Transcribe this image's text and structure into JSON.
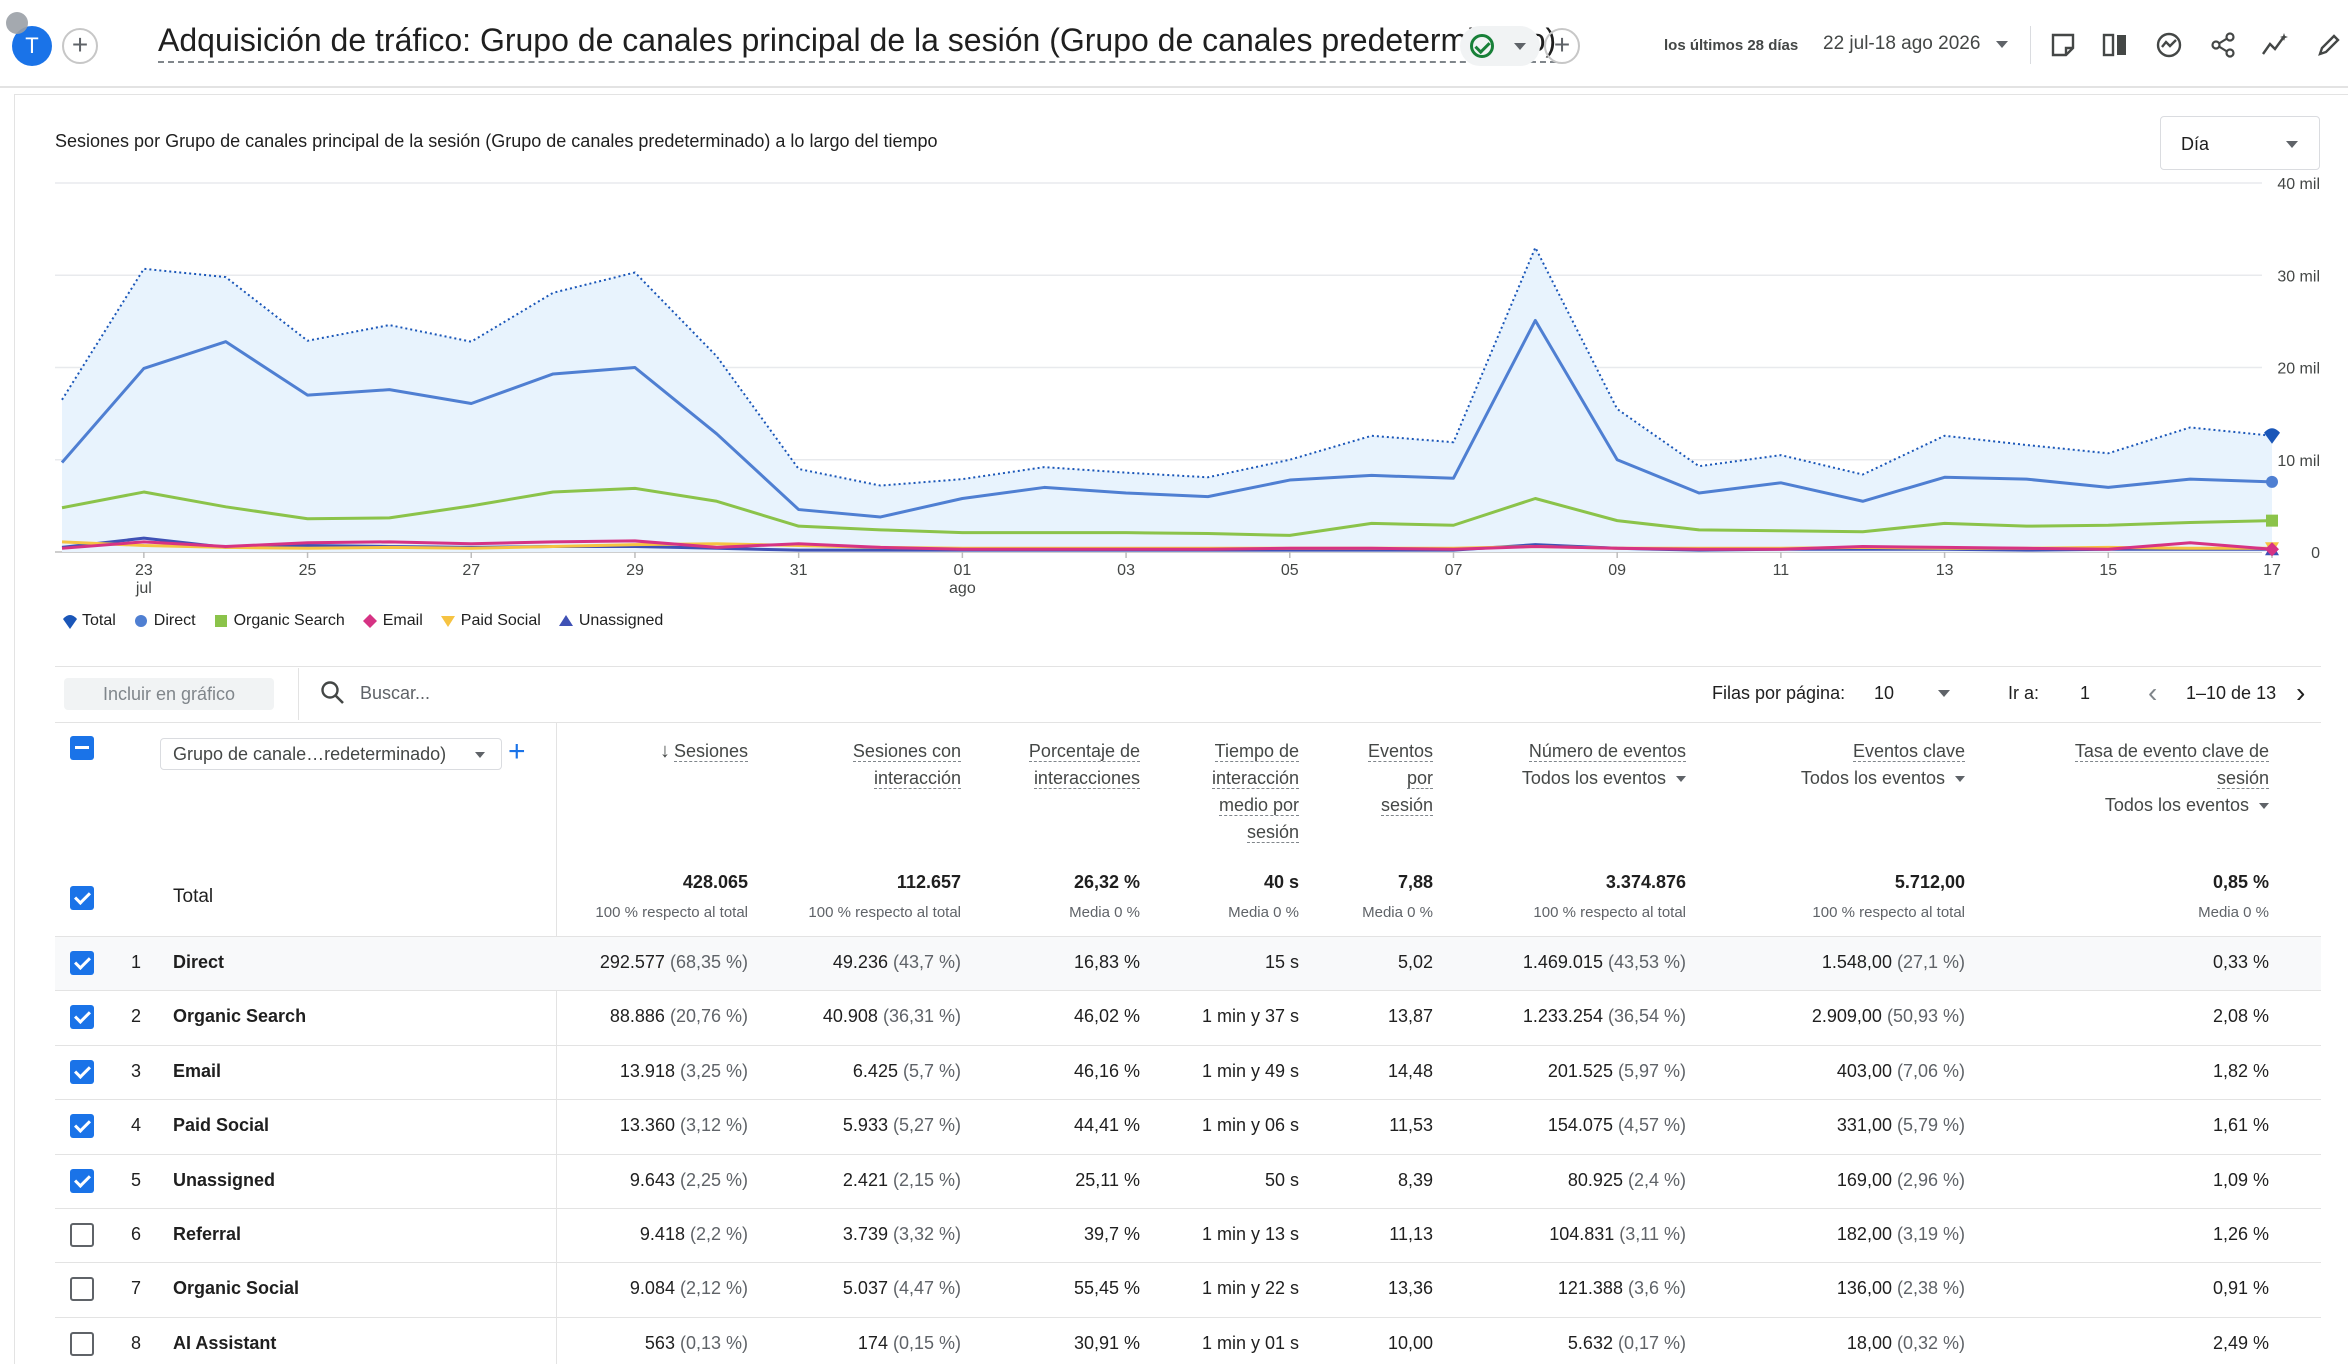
{
  "header": {
    "avatar_letter": "T",
    "title": "Adquisición de tráfico: Grupo de canales principal de la sesión (Grupo de canales predeterminado)",
    "date_label": "los últimos 28 días",
    "date_range": "22 jul-18 ago 2026",
    "icons": [
      "add-comparison-icon",
      "status-check-icon",
      "add-icon",
      "annotation-icon",
      "compare-icon",
      "insights-icon",
      "share-icon",
      "anomaly-icon",
      "edit-icon"
    ]
  },
  "chart_section": {
    "title": "Sesiones por Grupo de canales principal de la sesión (Grupo de canales predeterminado) a lo largo del tiempo",
    "granularity": "Día"
  },
  "chart_data": {
    "type": "line",
    "x": [
      "22 jul",
      "23 jul",
      "24 jul",
      "25 jul",
      "26 jul",
      "27 jul",
      "28 jul",
      "29 jul",
      "30 jul",
      "31 jul",
      "01 ago",
      "02 ago",
      "03 ago",
      "04 ago",
      "05 ago",
      "06 ago",
      "07 ago",
      "08 ago",
      "09 ago",
      "10 ago",
      "11 ago",
      "12 ago",
      "13 ago",
      "14 ago",
      "15 ago",
      "16 ago",
      "17 ago",
      "18 ago"
    ],
    "x_tick_labels": [
      "23",
      "25",
      "27",
      "29",
      "31",
      "01",
      "03",
      "05",
      "07",
      "09",
      "11",
      "13",
      "15",
      "17"
    ],
    "x_tick_sublabels": {
      "23": "jul",
      "01": "ago"
    },
    "y_ticks": [
      "0",
      "10 mil",
      "20 mil",
      "30 mil",
      "40 mil"
    ],
    "ylim": [
      0,
      40000
    ],
    "grid": true,
    "legend_position": "bottom-left",
    "series": [
      {
        "name": "Total",
        "color": "#1a73e8",
        "style": "dotted-area",
        "marker": "pin",
        "values": [
          16500,
          30700,
          29800,
          22900,
          24600,
          22800,
          28100,
          30300,
          21200,
          9000,
          7200,
          7900,
          9200,
          8600,
          8100,
          10000,
          12600,
          11900,
          33000,
          15500,
          9300,
          10500,
          8400,
          12600,
          11600,
          10700,
          13500,
          12600
        ]
      },
      {
        "name": "Direct",
        "color": "#4f7fd2",
        "style": "line",
        "marker": "circle",
        "values": [
          9700,
          19900,
          22800,
          17000,
          17600,
          16100,
          19300,
          20000,
          12800,
          4600,
          3800,
          5800,
          7000,
          6400,
          6000,
          7800,
          8300,
          8000,
          25100,
          10000,
          6400,
          7500,
          5500,
          8100,
          7900,
          7000,
          7900,
          7600
        ]
      },
      {
        "name": "Organic Search",
        "color": "#8bc34a",
        "style": "line",
        "marker": "square",
        "values": [
          4800,
          6500,
          4900,
          3600,
          3700,
          5000,
          6500,
          6900,
          5500,
          2800,
          2400,
          2100,
          2100,
          2100,
          2000,
          1800,
          3100,
          2900,
          5800,
          3400,
          2400,
          2300,
          2200,
          3100,
          2800,
          2900,
          3200,
          3400
        ]
      },
      {
        "name": "Email",
        "color": "#d63384",
        "style": "line",
        "marker": "diamond",
        "values": [
          400,
          1100,
          600,
          1000,
          1100,
          900,
          1100,
          1200,
          500,
          900,
          500,
          300,
          300,
          300,
          300,
          400,
          400,
          300,
          600,
          400,
          300,
          300,
          600,
          500,
          400,
          300,
          1000,
          300
        ]
      },
      {
        "name": "Paid Social",
        "color": "#f6c342",
        "style": "line",
        "marker": "triangle-down",
        "values": [
          1100,
          700,
          500,
          400,
          500,
          400,
          600,
          800,
          900,
          700,
          500,
          400,
          400,
          400,
          400,
          400,
          400,
          400,
          600,
          400,
          400,
          400,
          500,
          400,
          400,
          500,
          400,
          400
        ]
      },
      {
        "name": "Unassigned",
        "color": "#3f51b5",
        "style": "line",
        "marker": "triangle-up",
        "values": [
          500,
          1500,
          500,
          700,
          600,
          500,
          600,
          600,
          400,
          200,
          200,
          200,
          200,
          200,
          200,
          200,
          200,
          200,
          800,
          400,
          200,
          300,
          300,
          300,
          200,
          300,
          300,
          300
        ]
      }
    ]
  },
  "toolbar": {
    "include_label": "Incluir en gráfico",
    "search_placeholder": "Buscar...",
    "rows_label": "Filas por página:",
    "rows_value": "10",
    "goto_label": "Ir a:",
    "goto_value": "1",
    "pagination": "1–10 de 13"
  },
  "table": {
    "dimension_select": "Grupo de canale…redeterminado)",
    "columns": [
      {
        "label": "Sesiones",
        "sort": "desc"
      },
      {
        "label": "Sesiones con interacción"
      },
      {
        "label": "Porcentaje de interacciones"
      },
      {
        "label": "Tiempo de interacción medio por sesión"
      },
      {
        "label": "Eventos por sesión"
      },
      {
        "label": "Número de eventos",
        "filter": "Todos los eventos"
      },
      {
        "label": "Eventos clave",
        "filter": "Todos los eventos"
      },
      {
        "label": "Tasa de evento clave de sesión",
        "filter": "Todos los eventos"
      }
    ],
    "total": {
      "label": "Total",
      "values": [
        "428.065",
        "112.657",
        "26,32 %",
        "40 s",
        "7,88",
        "3.374.876",
        "5.712,00",
        "0,85 %"
      ],
      "subs": [
        "100 % respecto al total",
        "100 % respecto al total",
        "Media 0 %",
        "Media 0 %",
        "Media 0 %",
        "100 % respecto al total",
        "100 % respecto al total",
        "Media 0 %"
      ]
    },
    "rows": [
      {
        "num": "1",
        "name": "Direct",
        "checked": true,
        "cells": [
          [
            "292.577",
            "(68,35 %)"
          ],
          [
            "49.236",
            "(43,7 %)"
          ],
          [
            "16,83 %",
            ""
          ],
          [
            "15 s",
            ""
          ],
          [
            "5,02",
            ""
          ],
          [
            "1.469.015",
            "(43,53 %)"
          ],
          [
            "1.548,00",
            "(27,1 %)"
          ],
          [
            "0,33 %",
            ""
          ]
        ]
      },
      {
        "num": "2",
        "name": "Organic Search",
        "checked": true,
        "cells": [
          [
            "88.886",
            "(20,76 %)"
          ],
          [
            "40.908",
            "(36,31 %)"
          ],
          [
            "46,02 %",
            ""
          ],
          [
            "1 min y 37 s",
            ""
          ],
          [
            "13,87",
            ""
          ],
          [
            "1.233.254",
            "(36,54 %)"
          ],
          [
            "2.909,00",
            "(50,93 %)"
          ],
          [
            "2,08 %",
            ""
          ]
        ]
      },
      {
        "num": "3",
        "name": "Email",
        "checked": true,
        "cells": [
          [
            "13.918",
            "(3,25 %)"
          ],
          [
            "6.425",
            "(5,7 %)"
          ],
          [
            "46,16 %",
            ""
          ],
          [
            "1 min y 49 s",
            ""
          ],
          [
            "14,48",
            ""
          ],
          [
            "201.525",
            "(5,97 %)"
          ],
          [
            "403,00",
            "(7,06 %)"
          ],
          [
            "1,82 %",
            ""
          ]
        ]
      },
      {
        "num": "4",
        "name": "Paid Social",
        "checked": true,
        "cells": [
          [
            "13.360",
            "(3,12 %)"
          ],
          [
            "5.933",
            "(5,27 %)"
          ],
          [
            "44,41 %",
            ""
          ],
          [
            "1 min y 06 s",
            ""
          ],
          [
            "11,53",
            ""
          ],
          [
            "154.075",
            "(4,57 %)"
          ],
          [
            "331,00",
            "(5,79 %)"
          ],
          [
            "1,61 %",
            ""
          ]
        ]
      },
      {
        "num": "5",
        "name": "Unassigned",
        "checked": true,
        "cells": [
          [
            "9.643",
            "(2,25 %)"
          ],
          [
            "2.421",
            "(2,15 %)"
          ],
          [
            "25,11 %",
            ""
          ],
          [
            "50 s",
            ""
          ],
          [
            "8,39",
            ""
          ],
          [
            "80.925",
            "(2,4 %)"
          ],
          [
            "169,00",
            "(2,96 %)"
          ],
          [
            "1,09 %",
            ""
          ]
        ]
      },
      {
        "num": "6",
        "name": "Referral",
        "checked": false,
        "cells": [
          [
            "9.418",
            "(2,2 %)"
          ],
          [
            "3.739",
            "(3,32 %)"
          ],
          [
            "39,7 %",
            ""
          ],
          [
            "1 min y 13 s",
            ""
          ],
          [
            "11,13",
            ""
          ],
          [
            "104.831",
            "(3,11 %)"
          ],
          [
            "182,00",
            "(3,19 %)"
          ],
          [
            "1,26 %",
            ""
          ]
        ]
      },
      {
        "num": "7",
        "name": "Organic Social",
        "checked": false,
        "cells": [
          [
            "9.084",
            "(2,12 %)"
          ],
          [
            "5.037",
            "(4,47 %)"
          ],
          [
            "55,45 %",
            ""
          ],
          [
            "1 min y 22 s",
            ""
          ],
          [
            "13,36",
            ""
          ],
          [
            "121.388",
            "(3,6 %)"
          ],
          [
            "136,00",
            "(2,38 %)"
          ],
          [
            "0,91 %",
            ""
          ]
        ]
      },
      {
        "num": "8",
        "name": "AI Assistant",
        "checked": false,
        "cells": [
          [
            "563",
            "(0,13 %)"
          ],
          [
            "174",
            "(0,15 %)"
          ],
          [
            "30,91 %",
            ""
          ],
          [
            "1 min y 01 s",
            ""
          ],
          [
            "10,00",
            ""
          ],
          [
            "5.632",
            "(0,17 %)"
          ],
          [
            "18,00",
            "(0,32 %)"
          ],
          [
            "2,49 %",
            ""
          ]
        ]
      }
    ]
  }
}
